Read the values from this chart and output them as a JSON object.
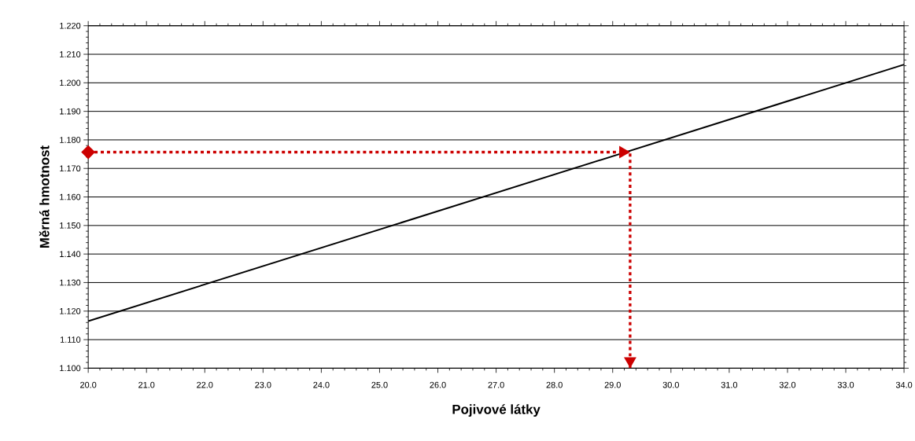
{
  "chart_data": {
    "type": "line",
    "xlabel": "Pojivové látky",
    "ylabel": "Měrná hmotnost",
    "xlim": [
      20,
      34
    ],
    "ylim": [
      1.1,
      1.22
    ],
    "xticks": [
      {
        "value": 20,
        "label": "20.0"
      },
      {
        "value": 21,
        "label": "21.0"
      },
      {
        "value": 22,
        "label": "22.0"
      },
      {
        "value": 23,
        "label": "23.0"
      },
      {
        "value": 24,
        "label": "24.0"
      },
      {
        "value": 25,
        "label": "25.0"
      },
      {
        "value": 26,
        "label": "26.0"
      },
      {
        "value": 27,
        "label": "27.0"
      },
      {
        "value": 28,
        "label": "28.0"
      },
      {
        "value": 29,
        "label": "29.0"
      },
      {
        "value": 30,
        "label": "30.0"
      },
      {
        "value": 31,
        "label": "31.0"
      },
      {
        "value": 32,
        "label": "32.0"
      },
      {
        "value": 33,
        "label": "33.0"
      },
      {
        "value": 34,
        "label": "34.0"
      }
    ],
    "yticks": [
      {
        "value": 1.1,
        "label": "1.100"
      },
      {
        "value": 1.11,
        "label": "1.110"
      },
      {
        "value": 1.12,
        "label": "1.120"
      },
      {
        "value": 1.13,
        "label": "1.130"
      },
      {
        "value": 1.14,
        "label": "1.140"
      },
      {
        "value": 1.15,
        "label": "1.150"
      },
      {
        "value": 1.16,
        "label": "1.160"
      },
      {
        "value": 1.17,
        "label": "1.170"
      },
      {
        "value": 1.18,
        "label": "1.180"
      },
      {
        "value": 1.19,
        "label": "1.190"
      },
      {
        "value": 1.2,
        "label": "1.200"
      },
      {
        "value": 1.21,
        "label": "1.210"
      },
      {
        "value": 1.22,
        "label": "1.220"
      }
    ],
    "grid": "y",
    "series": [
      {
        "color": "#000000",
        "x": [
          20,
          34
        ],
        "values": [
          1.1165,
          1.2064
        ],
        "line_style": "solid"
      },
      {
        "color": "#cc0000",
        "x": [
          20,
          29.3,
          29.3
        ],
        "values": [
          1.1757,
          1.1757,
          1.1
        ],
        "line_style": "dotted"
      }
    ]
  }
}
